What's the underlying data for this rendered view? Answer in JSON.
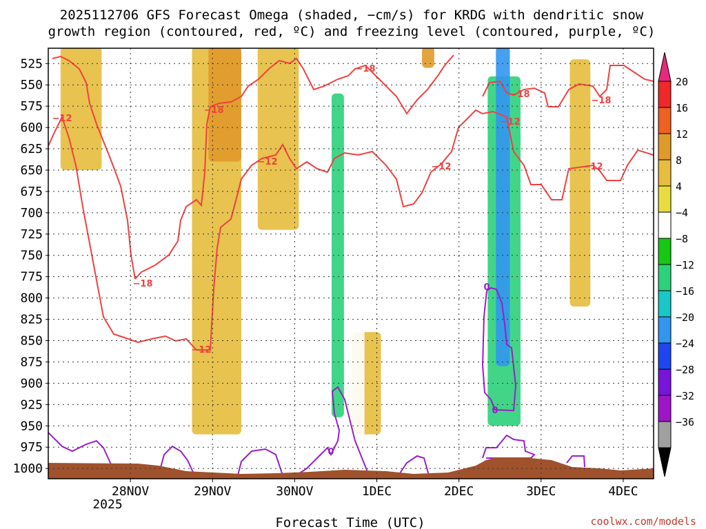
{
  "chart_data": {
    "type": "heatmap",
    "title": [
      "2025112706 GFS Forecast Omega (shaded, −cm/s) for KRDG with dendritic snow",
      "growth region (contoured, red, ºC) and freezing level (contoured, purple, ºC)"
    ],
    "xlabel": "Forecast Time (UTC)",
    "ylabel": "Pressure (hPa)",
    "credit": "coolwx.com/models",
    "x_ticks": [
      "28NOV",
      "29NOV",
      "30NOV",
      "1DEC",
      "2DEC",
      "3DEC",
      "4DEC"
    ],
    "x_tick_year": "2025",
    "x_range_days": [
      0.0,
      7.37
    ],
    "x_tick_days": [
      1.0,
      2.0,
      3.0,
      4.0,
      5.0,
      6.0,
      7.0
    ],
    "y_ticks": [
      525,
      550,
      575,
      600,
      625,
      650,
      675,
      700,
      725,
      750,
      775,
      800,
      825,
      850,
      875,
      900,
      925,
      950,
      975,
      1000
    ],
    "y_range_hpa": [
      507,
      1012
    ],
    "colorbar": {
      "levels": [
        20,
        16,
        12,
        8,
        4,
        -4,
        -8,
        -12,
        -16,
        -20,
        -24,
        -28,
        -32,
        -36
      ],
      "colors": [
        "#f02828",
        "#f06020",
        "#e09a2a",
        "#e6bd3c",
        "#e8dd3c",
        "#ffffff",
        "#14c814",
        "#2cd27a",
        "#18c8c8",
        "#3296f0",
        "#1e46f0",
        "#7814dc",
        "#a014c8",
        "#a0a0a0"
      ],
      "top_color": "#e8287c",
      "bottom_color": "#000000"
    },
    "contour_labels": {
      "dgz_upper": "−18",
      "dgz_lower": "−12",
      "freezing": "0"
    },
    "shaded_regions": [
      {
        "name": "ascent-core-3dec",
        "value": -20,
        "t": [
          5.45,
          5.62
        ],
        "p": [
          505,
          880
        ]
      },
      {
        "name": "ascent-3dec-cyan",
        "value": -14,
        "t": [
          5.35,
          5.75
        ],
        "p": [
          540,
          950
        ]
      },
      {
        "name": "ascent-3dec-green",
        "value": -6,
        "t": [
          5.25,
          5.85
        ],
        "p": [
          560,
          975
        ]
      },
      {
        "name": "ascent-1dec-cyan",
        "value": -13,
        "t": [
          3.45,
          3.6
        ],
        "p": [
          560,
          940
        ]
      },
      {
        "name": "ascent-1dec-green",
        "value": -6,
        "t": [
          3.25,
          3.85
        ],
        "p": [
          510,
          975
        ]
      },
      {
        "name": "ascent-2dec-green",
        "value": -6,
        "t": [
          4.15,
          4.3
        ],
        "p": [
          515,
          600
        ]
      },
      {
        "name": "ascent-4dec-green",
        "value": -6,
        "t": [
          6.1,
          6.25
        ],
        "p": [
          505,
          575
        ]
      },
      {
        "name": "ascent-4dec-low",
        "value": -6,
        "t": [
          6.85,
          6.95
        ],
        "p": [
          740,
          780
        ]
      },
      {
        "name": "descent-29nov",
        "value": 10,
        "t": [
          1.95,
          2.35
        ],
        "p": [
          505,
          640
        ]
      },
      {
        "name": "descent-29nov-yellow",
        "value": 5,
        "t": [
          1.75,
          2.35
        ],
        "p": [
          505,
          960
        ]
      },
      {
        "name": "descent-27nov",
        "value": 5,
        "t": [
          0.15,
          0.65
        ],
        "p": [
          505,
          650
        ]
      },
      {
        "name": "descent-30nov",
        "value": 5,
        "t": [
          2.55,
          3.05
        ],
        "p": [
          505,
          720
        ]
      },
      {
        "name": "descent-3dec-east",
        "value": 6,
        "t": [
          6.35,
          6.6
        ],
        "p": [
          520,
          810
        ]
      },
      {
        "name": "descent-2dec",
        "value": 10,
        "t": [
          4.55,
          4.7
        ],
        "p": [
          505,
          530
        ]
      },
      {
        "name": "descent-1dec-low",
        "value": 5,
        "t": [
          3.7,
          4.05
        ],
        "p": [
          840,
          960
        ]
      }
    ]
  }
}
